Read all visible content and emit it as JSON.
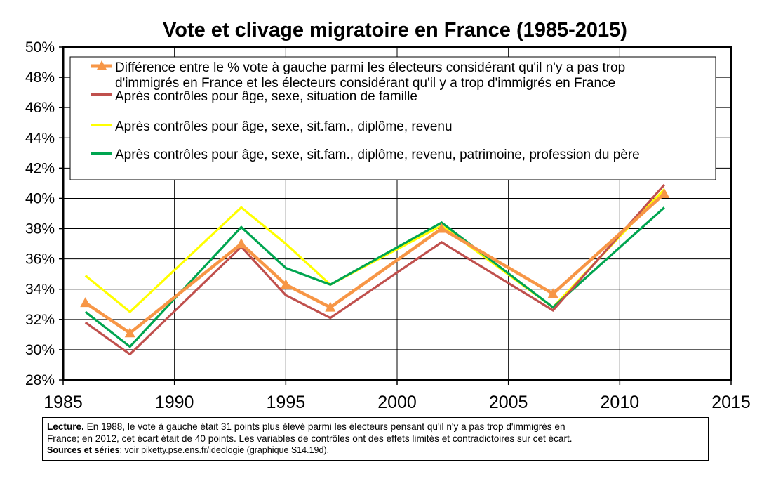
{
  "chart_data": {
    "type": "line",
    "title": "Vote et clivage migratoire en France (1985-2015)",
    "xlabel": "",
    "ylabel": "",
    "xlim": [
      1985,
      2015
    ],
    "ylim": [
      28,
      50
    ],
    "x_ticks": [
      "1985",
      "1990",
      "1995",
      "2000",
      "2005",
      "2010",
      "2015"
    ],
    "y_ticks": [
      "28%",
      "30%",
      "32%",
      "34%",
      "36%",
      "38%",
      "40%",
      "42%",
      "44%",
      "46%",
      "48%",
      "50%"
    ],
    "grid": true,
    "legend_position": "top",
    "series": [
      {
        "name": "Différence entre le % vote à gauche parmi les électeurs considérant qu'il n'y a pas trop d'immigrés en France et les électeurs considérant qu'il y a trop d'immigrés en France",
        "name_lines": [
          "Différence entre le % vote à gauche parmi les électeurs considérant qu'il n'y a pas trop",
          "d'immigrés en France et les électeurs considérant qu'il y a trop d'immigrés en France"
        ],
        "color": "#F79646",
        "marker": "triangle",
        "x": [
          1986,
          1988,
          1993,
          1995,
          1997,
          2002,
          2007,
          2012
        ],
        "values": [
          33.1,
          31.1,
          37.0,
          34.3,
          32.8,
          38.0,
          33.7,
          40.3
        ]
      },
      {
        "name": "Après contrôles pour âge, sexe, situation de famille",
        "color": "#C0504D",
        "marker": "none",
        "x": [
          1986,
          1988,
          1993,
          1995,
          1997,
          2002,
          2007,
          2012
        ],
        "values": [
          31.8,
          29.7,
          36.8,
          33.6,
          32.1,
          37.1,
          32.6,
          40.9
        ]
      },
      {
        "name": "Après contrôles pour âge, sexe, sit.fam., diplôme, revenu",
        "color": "#FFFF00",
        "marker": "none",
        "x": [
          1986,
          1988,
          1993,
          1995,
          1997,
          2002,
          2007,
          2012
        ],
        "values": [
          34.9,
          32.5,
          39.4,
          37.0,
          34.3,
          38.2,
          32.8,
          40.6
        ]
      },
      {
        "name": "Après contrôles pour âge, sexe, sit.fam., diplôme, revenu, patrimoine, profession du père",
        "color": "#00A550",
        "marker": "none",
        "x": [
          1986,
          1988,
          1993,
          1995,
          1997,
          2002,
          2007,
          2012
        ],
        "values": [
          32.5,
          30.2,
          38.1,
          35.4,
          34.3,
          38.4,
          32.8,
          39.4
        ]
      }
    ]
  },
  "note": {
    "lecture_label": "Lecture.",
    "lecture_line1": " En 1988, le vote à gauche était 31 points plus élevé parmi les électeurs pensant qu'il n'y a pas trop d'immigrés en",
    "lecture_line2": "France; en 2012, cet écart était de 40 points. Les variables de contrôles ont des effets limités et contradictoires sur cet écart.",
    "sources_label": "Sources et séries",
    "sources_text": ": voir piketty.pse.ens.fr/ideologie (graphique S14.19d)."
  }
}
